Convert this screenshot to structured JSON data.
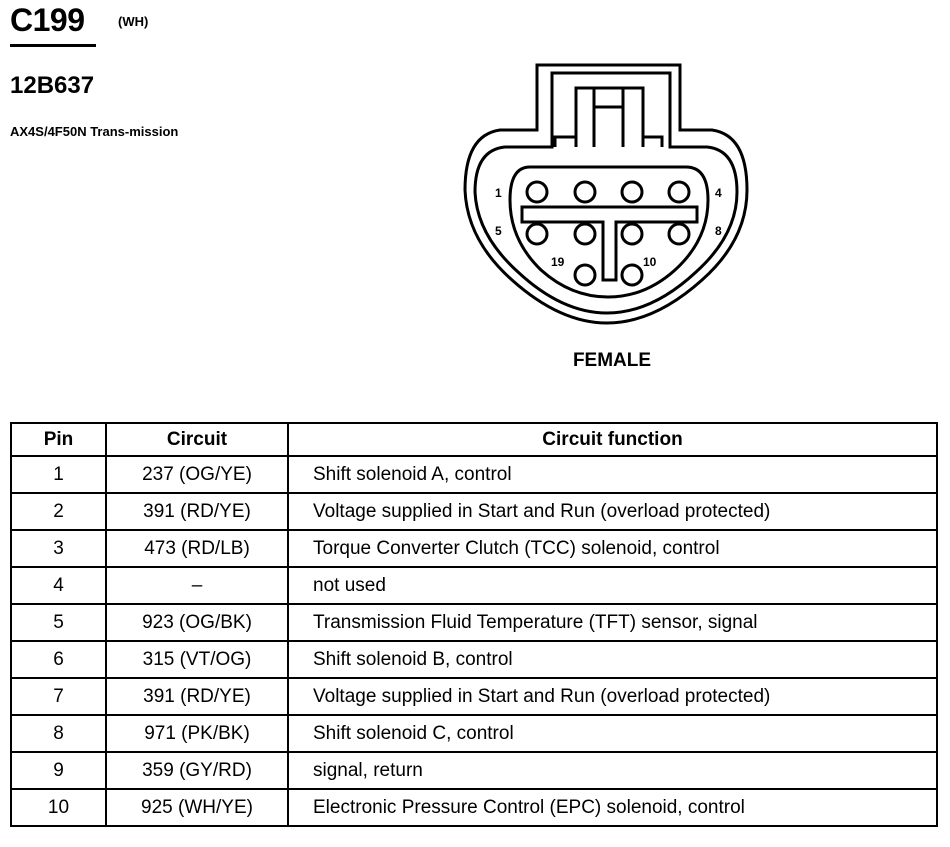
{
  "header": {
    "connector": "C199",
    "color_code": "(WH)",
    "part_number": "12B637",
    "description": "AX4S/4F50N Trans-mission"
  },
  "diagram": {
    "pin_labels": [
      "1",
      "4",
      "5",
      "8",
      "19",
      "10"
    ],
    "gender": "FEMALE"
  },
  "table": {
    "headers": [
      "Pin",
      "Circuit",
      "Circuit function"
    ],
    "rows": [
      {
        "pin": "1",
        "circuit": "237 (OG/YE)",
        "function": "Shift solenoid A, control"
      },
      {
        "pin": "2",
        "circuit": "391 (RD/YE)",
        "function": "Voltage supplied in Start and Run (overload protected)"
      },
      {
        "pin": "3",
        "circuit": "473 (RD/LB)",
        "function": "Torque Converter Clutch (TCC) solenoid, control"
      },
      {
        "pin": "4",
        "circuit": "–",
        "function": "not used"
      },
      {
        "pin": "5",
        "circuit": "923 (OG/BK)",
        "function": "Transmission Fluid Temperature (TFT) sensor, signal"
      },
      {
        "pin": "6",
        "circuit": "315 (VT/OG)",
        "function": "Shift solenoid B, control"
      },
      {
        "pin": "7",
        "circuit": "391 (RD/YE)",
        "function": "Voltage supplied in Start and Run (overload protected)"
      },
      {
        "pin": "8",
        "circuit": "971 (PK/BK)",
        "function": "Shift solenoid C, control"
      },
      {
        "pin": "9",
        "circuit": "359 (GY/RD)",
        "function": "signal, return"
      },
      {
        "pin": "10",
        "circuit": "925 (WH/YE)",
        "function": "Electronic Pressure Control (EPC) solenoid, control"
      }
    ]
  }
}
